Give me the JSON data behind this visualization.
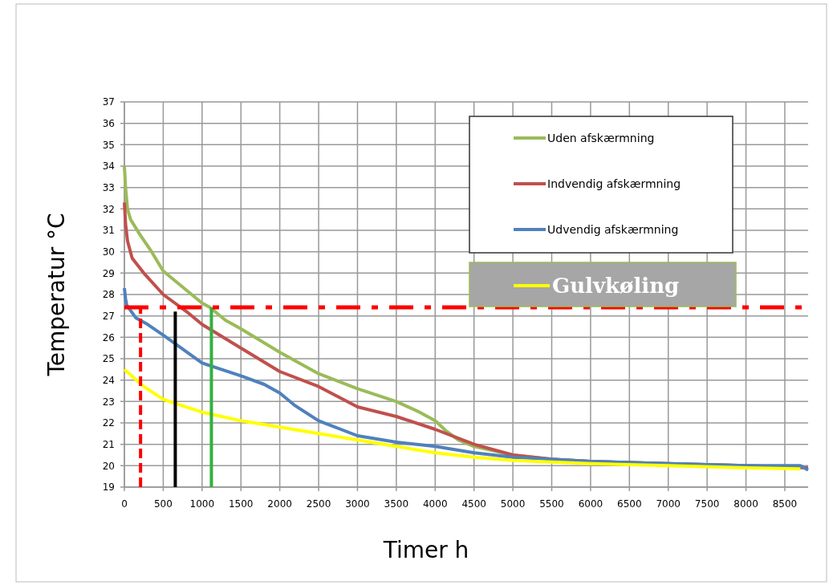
{
  "chart_data": {
    "type": "line",
    "xlabel": "Timer h",
    "ylabel": "Temperatur °C",
    "xlim": [
      0,
      8800
    ],
    "ylim": [
      19,
      37
    ],
    "xticks": [
      0,
      500,
      1000,
      1500,
      2000,
      2500,
      3000,
      3500,
      4000,
      4500,
      5000,
      5500,
      6000,
      6500,
      7000,
      7500,
      8000,
      8500
    ],
    "yticks": [
      19,
      20,
      21,
      22,
      23,
      24,
      25,
      26,
      27,
      28,
      29,
      30,
      31,
      32,
      33,
      34,
      35,
      36,
      37
    ],
    "grid": true,
    "legend": "top right",
    "line_style": "solid",
    "marker": "none",
    "series": [
      {
        "name": "Uden afskærmning",
        "color": "#9bbb59",
        "x": [
          0,
          15,
          40,
          80,
          200,
          350,
          500,
          700,
          1000,
          1100,
          1300,
          1500,
          2000,
          2500,
          3000,
          3500,
          3800,
          4000,
          4150,
          4300,
          4500,
          5000,
          5500,
          6000,
          7000,
          8000,
          8800
        ],
        "values": [
          34.0,
          33.0,
          32.0,
          31.5,
          30.8,
          30.0,
          29.1,
          28.5,
          27.6,
          27.4,
          26.8,
          26.4,
          25.3,
          24.3,
          23.6,
          23.0,
          22.5,
          22.1,
          21.6,
          21.2,
          20.9,
          20.5,
          20.3,
          20.2,
          20.1,
          20.0,
          19.9
        ]
      },
      {
        "name": "Indvendig afskærmning",
        "color": "#c0504d",
        "x": [
          0,
          15,
          40,
          100,
          250,
          500,
          800,
          1000,
          1500,
          2000,
          2500,
          3000,
          3500,
          4000,
          4500,
          5000,
          5500,
          6000,
          7000,
          8000,
          8800
        ],
        "values": [
          32.3,
          31.3,
          30.5,
          29.7,
          29.0,
          28.0,
          27.2,
          26.6,
          25.5,
          24.4,
          23.7,
          22.75,
          22.3,
          21.7,
          21.0,
          20.5,
          20.3,
          20.2,
          20.1,
          20.0,
          19.9
        ]
      },
      {
        "name": "Udvendig afskærmning",
        "color": "#4f81bd",
        "x": [
          0,
          15,
          30,
          150,
          300,
          500,
          1000,
          1500,
          1800,
          2000,
          2200,
          2500,
          3000,
          3500,
          4000,
          4500,
          5000,
          6000,
          7000,
          8000,
          8700,
          8800
        ],
        "values": [
          28.3,
          27.8,
          27.5,
          26.9,
          26.6,
          26.1,
          24.8,
          24.2,
          23.8,
          23.4,
          22.8,
          22.1,
          21.4,
          21.1,
          20.9,
          20.6,
          20.4,
          20.2,
          20.1,
          20.0,
          20.0,
          19.8
        ]
      },
      {
        "name": "Gulvkøling",
        "color": "#ffff00",
        "x": [
          0,
          250,
          500,
          1000,
          1500,
          2000,
          2500,
          3000,
          3500,
          4000,
          4500,
          5000,
          6000,
          7000,
          8000,
          8700
        ],
        "values": [
          24.5,
          23.7,
          23.1,
          22.5,
          22.1,
          21.8,
          21.5,
          21.2,
          20.9,
          20.6,
          20.4,
          20.25,
          20.1,
          20.0,
          19.9,
          19.85
        ]
      },
      {
        "color": "#ff0000",
        "line_style": "dashed",
        "x": [
          208,
          208
        ],
        "values": [
          19,
          27.4
        ]
      },
      {
        "color": "#000000",
        "x": [
          655,
          655
        ],
        "values": [
          19,
          27.2
        ]
      },
      {
        "color": "#33b040",
        "x": [
          1120,
          1120
        ],
        "values": [
          19,
          27.4
        ]
      }
    ],
    "ref_lines": [
      {
        "axis": "y",
        "value": 27.4,
        "color": "#ff0000",
        "line_style": "dashed"
      }
    ]
  }
}
